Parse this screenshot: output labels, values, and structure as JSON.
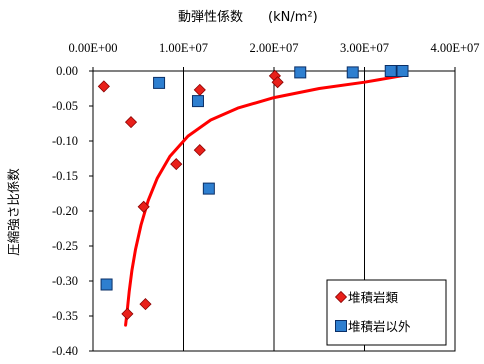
{
  "chart_data": {
    "type": "scatter",
    "title": "動弾性係数",
    "title_unit": "(kN/m²)",
    "ylabel": "圧縮強さ比係数",
    "xlim": [
      0,
      40000000
    ],
    "ylim": [
      -0.4,
      0.0
    ],
    "x_axis_position": "top",
    "y_axis_reversed": true,
    "x_ticks": [
      "0.00E+00",
      "1.00E+07",
      "2.00E+07",
      "3.00E+07",
      "4.00E+07"
    ],
    "x_tick_values": [
      0,
      10000000,
      20000000,
      30000000,
      40000000
    ],
    "y_ticks": [
      "0.00",
      "-0.05",
      "-0.10",
      "-0.15",
      "-0.20",
      "-0.25",
      "-0.30",
      "-0.35",
      "-0.40"
    ],
    "y_tick_values": [
      0.0,
      -0.05,
      -0.1,
      -0.15,
      -0.2,
      -0.25,
      -0.3,
      -0.35,
      -0.4
    ],
    "grid": "vertical",
    "legend_position": "bottom-right",
    "series": [
      {
        "name": "堆積岩類",
        "marker": "diamond",
        "color": "#e8201a",
        "points": [
          [
            1200000,
            -0.022
          ],
          [
            4200000,
            -0.073
          ],
          [
            9200000,
            -0.133
          ],
          [
            5600000,
            -0.194
          ],
          [
            5800000,
            -0.333
          ],
          [
            3800000,
            -0.347
          ],
          [
            11800000,
            -0.027
          ],
          [
            11800000,
            -0.113
          ],
          [
            20100000,
            -0.007
          ],
          [
            20400000,
            -0.016
          ]
        ]
      },
      {
        "name": "堆積岩以外",
        "marker": "square",
        "color": "#2e7fd0",
        "points": [
          [
            7300000,
            -0.017
          ],
          [
            11600000,
            -0.043
          ],
          [
            12800000,
            -0.168
          ],
          [
            1500000,
            -0.305
          ],
          [
            22900000,
            -0.002
          ],
          [
            28700000,
            -0.002
          ],
          [
            32900000,
            0.0
          ],
          [
            34200000,
            0.0
          ]
        ]
      }
    ],
    "trend_line": {
      "color": "#ff0000",
      "points": [
        [
          3600000,
          -0.363
        ],
        [
          3800000,
          -0.34
        ],
        [
          4000000,
          -0.315
        ],
        [
          4300000,
          -0.285
        ],
        [
          4700000,
          -0.255
        ],
        [
          5300000,
          -0.22
        ],
        [
          6100000,
          -0.185
        ],
        [
          7100000,
          -0.153
        ],
        [
          8500000,
          -0.122
        ],
        [
          10500000,
          -0.093
        ],
        [
          13000000,
          -0.07
        ],
        [
          16000000,
          -0.053
        ],
        [
          20000000,
          -0.038
        ],
        [
          25000000,
          -0.025
        ],
        [
          30000000,
          -0.016
        ],
        [
          34500000,
          -0.006
        ]
      ]
    }
  }
}
